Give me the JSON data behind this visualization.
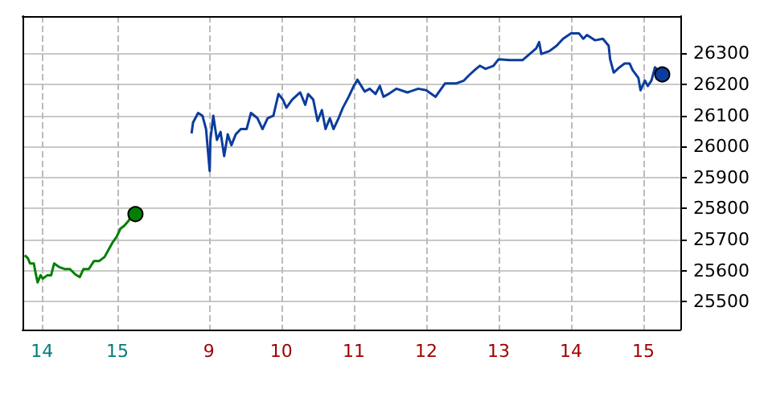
{
  "chart_data": [
    {
      "type": "line",
      "xlim": [
        13.74,
        15.62
      ],
      "ylim": [
        25410,
        26420
      ],
      "xticks": [
        14,
        15
      ],
      "yticks": [
        25500,
        25600,
        25700,
        25800,
        25900,
        26000,
        26100,
        26200,
        26300
      ],
      "grid": true,
      "tick_labels": "x",
      "series": [
        {
          "color": "#008000",
          "x": [
            13.77,
            13.81,
            13.84,
            13.89,
            13.91,
            13.94,
            13.98,
            14.01,
            14.07,
            14.12,
            14.16,
            14.23,
            14.3,
            14.37,
            14.44,
            14.5,
            14.55,
            14.62,
            14.69,
            14.76,
            14.83,
            14.9,
            14.94,
            14.99,
            15.04,
            15.09,
            15.15,
            15.19,
            15.24
          ],
          "values": [
            25649,
            25640,
            25623,
            25623,
            25597,
            25562,
            25585,
            25574,
            25585,
            25585,
            25623,
            25611,
            25605,
            25605,
            25588,
            25579,
            25605,
            25605,
            25631,
            25631,
            25644,
            25675,
            25692,
            25709,
            25735,
            25744,
            25761,
            25779,
            25782
          ]
        }
      ]
    },
    {
      "type": "line",
      "xlim": [
        8.38,
        15.51
      ],
      "ylim": [
        25410,
        26420
      ],
      "xticks": [
        9,
        10,
        11,
        12,
        13,
        14,
        15
      ],
      "yticks": [
        25500,
        25600,
        25700,
        25800,
        25900,
        26000,
        26100,
        26200,
        26300
      ],
      "grid": true,
      "series": [
        {
          "color": "#0d3c9c",
          "x": [
            8.76,
            8.78,
            8.85,
            8.91,
            8.96,
            9.01,
            9.02,
            9.06,
            9.11,
            9.16,
            9.21,
            9.26,
            9.31,
            9.37,
            9.44,
            9.52,
            9.58,
            9.67,
            9.74,
            9.81,
            9.89,
            9.96,
            10.02,
            10.07,
            10.15,
            10.26,
            10.33,
            10.37,
            10.44,
            10.5,
            10.56,
            10.61,
            10.67,
            10.72,
            10.79,
            10.85,
            10.93,
            11.0,
            11.05,
            11.15,
            11.22,
            11.3,
            11.36,
            11.41,
            11.48,
            11.59,
            11.74,
            11.89,
            12.0,
            12.13,
            12.18,
            12.26,
            12.41,
            12.52,
            12.59,
            12.67,
            12.74,
            12.82,
            12.93,
            13.0,
            13.15,
            13.33,
            13.43,
            13.52,
            13.56,
            13.59,
            13.7,
            13.8,
            13.89,
            14.0,
            14.11,
            14.17,
            14.22,
            14.33,
            14.44,
            14.52,
            14.54,
            14.59,
            14.67,
            14.74,
            14.81,
            14.85,
            14.93,
            14.96,
            15.02,
            15.06,
            15.11,
            15.16,
            15.26
          ],
          "values": [
            26042,
            26077,
            26108,
            26099,
            26056,
            25921,
            26021,
            26099,
            26021,
            26047,
            25969,
            26039,
            26004,
            26039,
            26056,
            26056,
            26108,
            26091,
            26056,
            26091,
            26099,
            26169,
            26151,
            26125,
            26151,
            26174,
            26134,
            26169,
            26151,
            26082,
            26117,
            26056,
            26091,
            26056,
            26091,
            26125,
            26160,
            26195,
            26215,
            26177,
            26186,
            26169,
            26195,
            26160,
            26169,
            26186,
            26174,
            26186,
            26181,
            26160,
            26177,
            26203,
            26203,
            26212,
            26229,
            26246,
            26260,
            26250,
            26260,
            26281,
            26278,
            26278,
            26298,
            26316,
            26336,
            26298,
            26307,
            26324,
            26347,
            26364,
            26364,
            26347,
            26359,
            26342,
            26347,
            26324,
            26281,
            26238,
            26255,
            26267,
            26267,
            26246,
            26221,
            26181,
            26212,
            26195,
            26212,
            26255,
            26232
          ]
        }
      ]
    }
  ]
}
